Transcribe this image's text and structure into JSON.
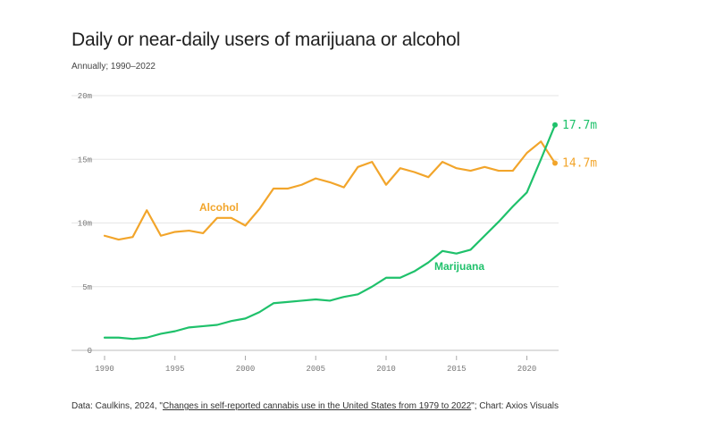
{
  "title": "Daily or near-daily users of marijuana or alcohol",
  "subtitle": "Annually; 1990–2022",
  "footer": {
    "prefix": "Data: Caulkins, 2024, \"",
    "link_text": "Changes in self-reported cannabis use in the United States from 1979 to 2022",
    "suffix": "\"; Chart: Axios Visuals"
  },
  "chart_data": {
    "type": "line",
    "title": "Daily or near-daily users of marijuana or alcohol",
    "subtitle": "Annually; 1990–2022",
    "x": [
      1990,
      1991,
      1992,
      1993,
      1994,
      1995,
      1996,
      1997,
      1998,
      1999,
      2000,
      2001,
      2002,
      2003,
      2004,
      2005,
      2006,
      2007,
      2008,
      2009,
      2010,
      2011,
      2012,
      2013,
      2014,
      2015,
      2016,
      2017,
      2018,
      2019,
      2020,
      2021,
      2022
    ],
    "xlim": [
      1990,
      2022
    ],
    "ylim": [
      0,
      20
    ],
    "x_ticks": [
      1990,
      1995,
      2000,
      2005,
      2010,
      2015,
      2020
    ],
    "x_tick_labels": [
      "1990",
      "1995",
      "2000",
      "2005",
      "2010",
      "2015",
      "2020"
    ],
    "y_ticks": [
      0,
      5,
      10,
      15,
      20
    ],
    "y_tick_labels": [
      "0",
      "5m",
      "10m",
      "15m",
      "20m"
    ],
    "grid": true,
    "series": [
      {
        "name": "Alcohol",
        "color": "#f2a52b",
        "end_label": "14.7m",
        "values": [
          9.0,
          8.7,
          8.9,
          11.0,
          9.0,
          9.3,
          9.4,
          9.2,
          10.4,
          10.4,
          9.8,
          11.1,
          12.7,
          12.7,
          13.0,
          13.5,
          13.2,
          12.8,
          14.4,
          14.8,
          13.0,
          14.3,
          14.0,
          13.6,
          14.8,
          14.3,
          14.1,
          14.4,
          14.1,
          14.1,
          15.5,
          16.4,
          14.7
        ]
      },
      {
        "name": "Marijuana",
        "color": "#1fc16b",
        "end_label": "17.7m",
        "values": [
          1.0,
          1.0,
          0.9,
          1.0,
          1.3,
          1.5,
          1.8,
          1.9,
          2.0,
          2.3,
          2.5,
          3.0,
          3.7,
          3.8,
          3.9,
          4.0,
          3.9,
          4.2,
          4.4,
          5.0,
          5.7,
          5.7,
          6.2,
          6.9,
          7.8,
          7.6,
          7.9,
          9.0,
          10.1,
          11.3,
          12.4,
          15.0,
          17.7
        ]
      }
    ]
  }
}
